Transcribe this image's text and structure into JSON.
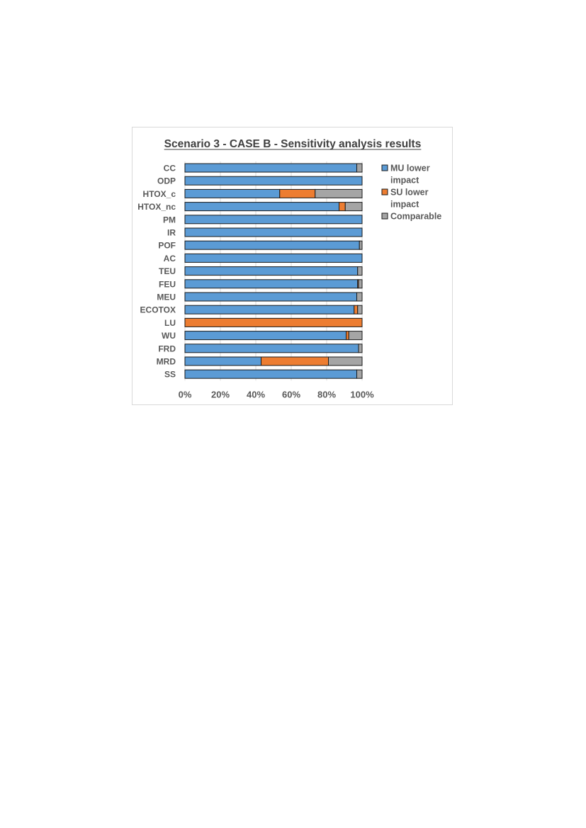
{
  "chart_data": {
    "type": "bar",
    "orientation": "horizontal",
    "stacked": true,
    "title": "Scenario 3 - CASE B - Sensitivity analysis results",
    "xlabel": "",
    "ylabel": "",
    "xlim": [
      0,
      100
    ],
    "x_tick_labels": [
      "0%",
      "20%",
      "40%",
      "60%",
      "80%",
      "100%"
    ],
    "x_ticks": [
      0,
      20,
      40,
      60,
      80,
      100
    ],
    "grid": true,
    "legend_position": "right",
    "categories": [
      "CC",
      "ODP",
      "HTOX_c",
      "HTOX_nc",
      "PM",
      "IR",
      "POF",
      "AC",
      "TEU",
      "FEU",
      "MEU",
      "ECOTOX",
      "LU",
      "WU",
      "FRD",
      "MRD",
      "SS"
    ],
    "series": [
      {
        "name": "MU lower impact",
        "legend_lines": [
          "MU lower",
          "impact"
        ],
        "color": "#5b9bd5",
        "values": [
          97,
          100,
          53.5,
          87,
          100,
          100,
          98.5,
          100,
          97.5,
          97.5,
          97,
          95.5,
          0,
          91,
          98,
          43,
          97
        ]
      },
      {
        "name": "SU lower impact",
        "legend_lines": [
          "SU lower",
          "impact"
        ],
        "color": "#ed7d31",
        "values": [
          0,
          0,
          20,
          3.5,
          0,
          0,
          0,
          0,
          0,
          0.5,
          0,
          2,
          100,
          1.5,
          0,
          38,
          0
        ]
      },
      {
        "name": "Comparable",
        "legend_lines": [
          "Comparable"
        ],
        "color": "#a5a5a5",
        "values": [
          3,
          0,
          26.5,
          9.5,
          0,
          0,
          1.5,
          0,
          2.5,
          2,
          3,
          2.5,
          0,
          7.5,
          2,
          19,
          3
        ]
      }
    ]
  }
}
